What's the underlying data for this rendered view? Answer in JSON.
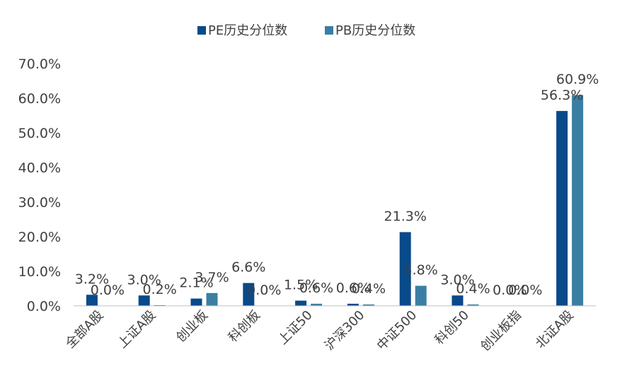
{
  "chart_data": {
    "type": "bar",
    "categories": [
      "全部A股",
      "上证A股",
      "创业板",
      "科创板",
      "上证50",
      "沪深300",
      "中证500",
      "科创50",
      "创业板指",
      "北证A股"
    ],
    "series": [
      {
        "name": "PE历史分位数",
        "values": [
          3.2,
          3.0,
          2.1,
          6.6,
          1.5,
          0.6,
          21.3,
          3.0,
          0.0,
          56.3
        ],
        "labels": [
          "3.2%",
          "3.0%",
          "2.1%",
          "6.6%",
          "1.5%",
          "0.6%",
          "21.3%",
          "3.0%",
          "0.0%",
          "56.3%"
        ]
      },
      {
        "name": "PB历史分位数",
        "values": [
          0.0,
          0.2,
          3.7,
          0.0,
          0.6,
          0.4,
          5.8,
          0.4,
          0.0,
          60.9
        ],
        "labels": [
          "0.0%",
          "0.2%",
          "3.7%",
          "0.0%",
          "0.6%",
          "0.4%",
          "5.8%",
          "0.4%",
          "0.0%",
          "60.9%"
        ]
      }
    ],
    "yticks": [
      "0.0%",
      "10.0%",
      "20.0%",
      "30.0%",
      "40.0%",
      "50.0%",
      "60.0%",
      "70.0%"
    ],
    "ylim": [
      0,
      70
    ],
    "legend_position": "top-center",
    "grid": false,
    "colors": {
      "PE": "#084a8a",
      "PB": "#3a7fa3",
      "axis": "#bfbfbf",
      "text": "#404040"
    }
  }
}
